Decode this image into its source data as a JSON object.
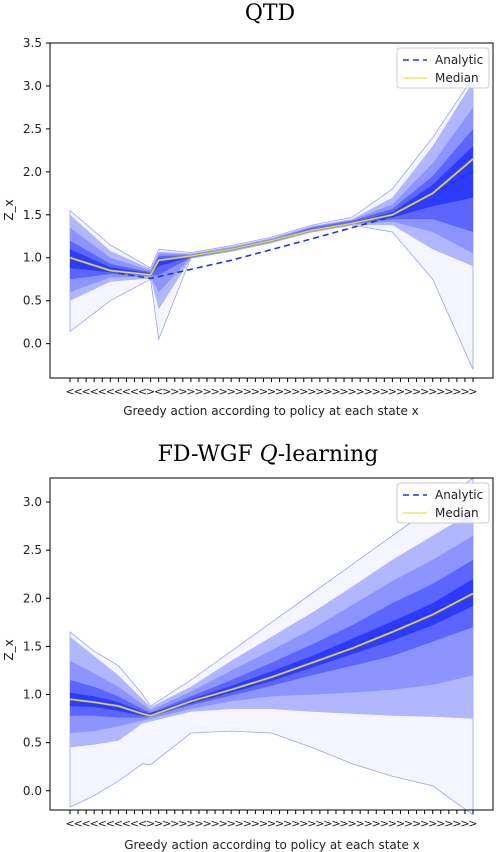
{
  "chart_data": [
    {
      "type": "area",
      "title": "QTD",
      "xlabel": "Greedy action according to policy at each state x",
      "ylabel": "Z_x",
      "ylim": [
        -0.4,
        3.5
      ],
      "yticks": [
        "0.0",
        "0.5",
        "1.0",
        "1.5",
        "2.0",
        "2.5",
        "3.0",
        "3.5"
      ],
      "x": [
        0,
        1,
        2,
        3,
        4,
        5,
        6,
        7,
        8,
        9,
        10,
        11,
        12,
        13,
        14,
        15,
        16,
        17,
        18,
        19,
        20,
        21,
        22,
        23,
        24,
        25,
        26,
        27,
        28,
        29,
        30,
        31,
        32,
        33,
        34,
        35,
        36,
        37,
        38,
        39,
        40,
        41,
        42,
        43,
        44,
        45,
        46,
        47,
        48,
        49,
        50
      ],
      "x_tick_labels": [
        "<",
        "<",
        "<",
        "<",
        "<",
        "<",
        "<",
        "<",
        "<",
        "<",
        ">",
        "<",
        ">",
        ">",
        ">",
        ">",
        ">",
        ">",
        ">",
        ">",
        ">",
        ">",
        ">",
        ">",
        ">",
        ">",
        ">",
        ">",
        ">",
        ">",
        ">",
        ">",
        ">",
        ">",
        ">",
        ">",
        ">",
        ">",
        ">",
        ">",
        ">",
        ">",
        ">",
        ">",
        ">",
        ">",
        ">",
        ">",
        ">",
        ">",
        ">"
      ],
      "legend_position": "top-right",
      "series": [
        {
          "name": "Analytic",
          "style": "dashed",
          "color": "#2233ee",
          "x": [
            6,
            10,
            20,
            30,
            40,
            50
          ],
          "y": [
            0.82,
            0.76,
            0.97,
            1.22,
            1.48,
            2.0
          ]
        },
        {
          "name": "Median",
          "style": "solid",
          "color": "#e8e040",
          "x": [
            0,
            5,
            10,
            11,
            15,
            20,
            25,
            30,
            35,
            40,
            45,
            50
          ],
          "y": [
            1.0,
            0.85,
            0.8,
            0.97,
            1.02,
            1.1,
            1.2,
            1.32,
            1.4,
            1.5,
            1.75,
            2.15
          ]
        }
      ],
      "bands": {
        "x": [
          0,
          5,
          10,
          11,
          15,
          20,
          25,
          30,
          35,
          40,
          45,
          50
        ],
        "lower": [
          [
            0.14,
            0.5,
            0.75,
            0.05,
            1.0,
            1.08,
            1.18,
            1.3,
            1.38,
            1.3,
            0.75,
            -0.3
          ],
          [
            0.5,
            0.72,
            0.76,
            0.4,
            0.99,
            1.07,
            1.17,
            1.3,
            1.38,
            1.38,
            1.1,
            0.9
          ],
          [
            0.6,
            0.77,
            0.78,
            0.6,
            1.0,
            1.08,
            1.18,
            1.31,
            1.39,
            1.42,
            1.3,
            1.05
          ],
          [
            0.75,
            0.81,
            0.79,
            0.8,
            1.0,
            1.09,
            1.19,
            1.31,
            1.39,
            1.45,
            1.45,
            1.3
          ],
          [
            0.88,
            0.83,
            0.8,
            0.9,
            1.01,
            1.09,
            1.19,
            1.32,
            1.4,
            1.47,
            1.6,
            1.7
          ]
        ],
        "upper": [
          [
            1.55,
            1.15,
            0.88,
            1.1,
            1.06,
            1.14,
            1.24,
            1.38,
            1.47,
            1.8,
            2.4,
            3.1
          ],
          [
            1.5,
            1.08,
            0.87,
            1.07,
            1.05,
            1.13,
            1.23,
            1.37,
            1.45,
            1.7,
            2.3,
            3.05
          ],
          [
            1.35,
            1.0,
            0.85,
            1.05,
            1.04,
            1.12,
            1.22,
            1.36,
            1.44,
            1.62,
            2.1,
            2.75
          ],
          [
            1.2,
            0.93,
            0.83,
            1.02,
            1.03,
            1.11,
            1.21,
            1.35,
            1.43,
            1.57,
            1.95,
            2.5
          ],
          [
            1.1,
            0.89,
            0.82,
            0.99,
            1.02,
            1.1,
            1.2,
            1.33,
            1.41,
            1.53,
            1.85,
            2.3
          ]
        ]
      }
    },
    {
      "type": "area",
      "title": "FD-WGF Q-learning",
      "xlabel": "Greedy action according to policy at each state x",
      "ylabel": "Z_x",
      "ylim": [
        -0.2,
        3.25
      ],
      "yticks": [
        "0.0",
        "0.5",
        "1.0",
        "1.5",
        "2.0",
        "2.5",
        "3.0"
      ],
      "x": [
        0,
        1,
        2,
        3,
        4,
        5,
        6,
        7,
        8,
        9,
        10,
        11,
        12,
        13,
        14,
        15,
        16,
        17,
        18,
        19,
        20,
        21,
        22,
        23,
        24,
        25,
        26,
        27,
        28,
        29,
        30,
        31,
        32,
        33,
        34,
        35,
        36,
        37,
        38,
        39,
        40,
        41,
        42,
        43,
        44,
        45,
        46,
        47,
        48,
        49,
        50
      ],
      "x_tick_labels": [
        "<",
        "<",
        "<",
        "<",
        "<",
        "<",
        "<",
        "<",
        "<",
        "<",
        ">",
        ">",
        ">",
        ">",
        ">",
        ">",
        ">",
        ">",
        ">",
        ">",
        ">",
        ">",
        ">",
        ">",
        ">",
        ">",
        ">",
        ">",
        ">",
        ">",
        ">",
        ">",
        ">",
        ">",
        ">",
        ">",
        ">",
        ">",
        ">",
        ">",
        ">",
        ">",
        ">",
        ">",
        ">",
        ">",
        ">",
        ">",
        ">",
        ">",
        ">"
      ],
      "legend_position": "top-right",
      "series": [
        {
          "name": "Analytic",
          "style": "dashed",
          "color": "#2233ee",
          "x": [
            10,
            20,
            30,
            40,
            50
          ],
          "y": [
            0.8,
            1.03,
            1.33,
            1.68,
            2.05
          ]
        },
        {
          "name": "Median",
          "style": "solid",
          "color": "#e8e040",
          "x": [
            0,
            3,
            6,
            9,
            10,
            15,
            20,
            25,
            30,
            35,
            40,
            45,
            50
          ],
          "y": [
            0.95,
            0.92,
            0.88,
            0.8,
            0.78,
            0.93,
            1.05,
            1.18,
            1.33,
            1.48,
            1.65,
            1.83,
            2.05
          ]
        }
      ],
      "bands": {
        "x": [
          0,
          3,
          6,
          9,
          10,
          15,
          20,
          25,
          30,
          35,
          40,
          45,
          50
        ],
        "lower": [
          [
            -0.17,
            -0.05,
            0.1,
            0.28,
            0.27,
            0.6,
            0.62,
            0.6,
            0.45,
            0.28,
            0.15,
            0.05,
            -0.25
          ],
          [
            0.45,
            0.48,
            0.52,
            0.7,
            0.72,
            0.82,
            0.85,
            0.85,
            0.82,
            0.8,
            0.78,
            0.77,
            0.75
          ],
          [
            0.6,
            0.62,
            0.67,
            0.73,
            0.75,
            0.85,
            0.93,
            0.98,
            1.0,
            1.02,
            1.05,
            1.1,
            1.2
          ],
          [
            0.78,
            0.78,
            0.76,
            0.76,
            0.77,
            0.89,
            0.99,
            1.09,
            1.2,
            1.3,
            1.4,
            1.55,
            1.7
          ],
          [
            0.88,
            0.87,
            0.83,
            0.78,
            0.78,
            0.91,
            1.02,
            1.14,
            1.28,
            1.42,
            1.56,
            1.72,
            1.92
          ]
        ],
        "upper": [
          [
            1.65,
            1.45,
            1.3,
            1.0,
            0.88,
            1.15,
            1.45,
            1.75,
            2.05,
            2.35,
            2.65,
            2.95,
            3.25
          ],
          [
            1.6,
            1.4,
            1.2,
            0.95,
            0.87,
            1.08,
            1.35,
            1.6,
            1.85,
            2.12,
            2.4,
            2.65,
            2.9
          ],
          [
            1.35,
            1.22,
            1.08,
            0.9,
            0.84,
            1.03,
            1.25,
            1.46,
            1.68,
            1.93,
            2.18,
            2.4,
            2.65
          ],
          [
            1.15,
            1.08,
            0.98,
            0.85,
            0.81,
            0.98,
            1.15,
            1.33,
            1.52,
            1.72,
            1.95,
            2.15,
            2.4
          ],
          [
            1.02,
            0.98,
            0.92,
            0.82,
            0.8,
            0.95,
            1.09,
            1.24,
            1.4,
            1.58,
            1.76,
            1.95,
            2.2
          ]
        ]
      }
    }
  ]
}
